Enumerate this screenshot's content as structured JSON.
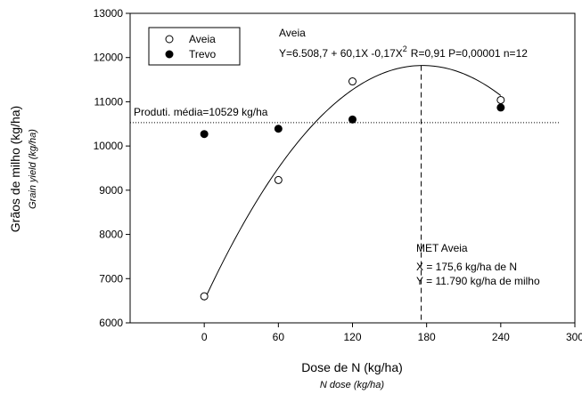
{
  "chart_data": {
    "type": "scatter",
    "xlabel": "Dose de N (kg/ha)",
    "xlabel_en": "N dose  (kg/ha)",
    "ylabel": "Grãos de milho (kg/ha)",
    "ylabel_en": "Grain yield  (kg/ha)",
    "xlim": [
      -60,
      300
    ],
    "ylim": [
      6000,
      13000
    ],
    "xticks": [
      0,
      60,
      120,
      180,
      240,
      300
    ],
    "yticks": [
      6000,
      7000,
      8000,
      9000,
      10000,
      11000,
      12000,
      13000
    ],
    "grid": false,
    "legend_position": "top-left",
    "series": [
      {
        "name": "Aveia",
        "marker": "open-circle",
        "x": [
          0,
          60,
          120,
          240
        ],
        "y": [
          6600,
          9230,
          11460,
          11040
        ]
      },
      {
        "name": "Trevo",
        "marker": "filled-circle",
        "x": [
          0,
          60,
          120,
          240
        ],
        "y": [
          10270,
          10390,
          10600,
          10870
        ]
      }
    ],
    "fit": {
      "series": "Aveia",
      "label": "Aveia",
      "equation_prefix": "Y=6.508,7 + 60,1X -0,17X",
      "equation_exponent": "2",
      "equation_stats": "R=0,91 P=0,00001 n=12",
      "a": 6508.7,
      "b": 60.1,
      "c": -0.17,
      "x_range": [
        0,
        240
      ]
    },
    "reference_line": {
      "y": 10529,
      "label": "Produti. média=10529 kg/ha",
      "style": "dotted"
    },
    "optimum": {
      "x": 175.6,
      "style": "dashed",
      "title": "MET Aveia",
      "x_text": "X = 175,6 kg/ha de N",
      "y_text": "Y = 11.790 kg/ha de milho"
    }
  }
}
